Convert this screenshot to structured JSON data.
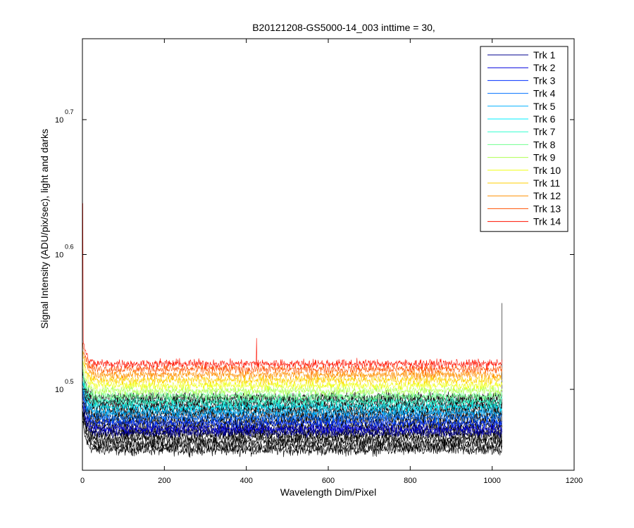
{
  "chart_data": {
    "type": "line",
    "title": "B20121208-GS5000-14_003 inttime = 30,",
    "xlabel": "Wavelength Dim/Pixel",
    "ylabel": "Signal Intensity (ADU/pix/sec), light and darks",
    "xlim": [
      0,
      1200
    ],
    "ylim_log10": [
      0.44,
      0.76
    ],
    "yscale": "log",
    "x_ticks": [
      0,
      200,
      400,
      600,
      800,
      1000,
      1200
    ],
    "y_ticks": [
      {
        "base": "10",
        "exp": "0.5",
        "value_log10": 0.5
      },
      {
        "base": "10",
        "exp": "0.6",
        "value_log10": 0.6
      },
      {
        "base": "10",
        "exp": "0.7",
        "value_log10": 0.7
      }
    ],
    "grid": false,
    "legend_position": "top-right",
    "x_range": [
      1,
      1024
    ],
    "series": [
      {
        "name": "Trk 1",
        "color": "#00008f",
        "light_log10": 0.468,
        "dark_log10": 0.455
      },
      {
        "name": "Trk 2",
        "color": "#0000df",
        "light_log10": 0.471,
        "dark_log10": 0.458
      },
      {
        "name": "Trk 3",
        "color": "#0030ff",
        "light_log10": 0.475,
        "dark_log10": 0.461
      },
      {
        "name": "Trk 4",
        "color": "#0070ff",
        "light_log10": 0.479,
        "dark_log10": 0.464
      },
      {
        "name": "Trk 5",
        "color": "#00b0ff",
        "light_log10": 0.483,
        "dark_log10": 0.467
      },
      {
        "name": "Trk 6",
        "color": "#00efff",
        "light_log10": 0.487,
        "dark_log10": 0.47
      },
      {
        "name": "Trk 7",
        "color": "#30ffcf",
        "light_log10": 0.491,
        "dark_log10": 0.473
      },
      {
        "name": "Trk 8",
        "color": "#70ff8f",
        "light_log10": 0.495,
        "dark_log10": 0.476
      },
      {
        "name": "Trk 9",
        "color": "#afff50",
        "light_log10": 0.499,
        "dark_log10": 0.479
      },
      {
        "name": "Trk 10",
        "color": "#efff10",
        "light_log10": 0.503,
        "dark_log10": 0.482
      },
      {
        "name": "Trk 11",
        "color": "#ffcf00",
        "light_log10": 0.507,
        "dark_log10": 0.485
      },
      {
        "name": "Trk 12",
        "color": "#ff8f00",
        "light_log10": 0.511,
        "dark_log10": 0.488
      },
      {
        "name": "Trk 13",
        "color": "#ff5000",
        "light_log10": 0.515,
        "dark_log10": 0.491
      },
      {
        "name": "Trk 14",
        "color": "#ff1000",
        "light_log10": 0.519,
        "dark_log10": 0.494
      }
    ],
    "dark_color": "#000000",
    "notable_spikes": [
      {
        "x": 1,
        "log10": 0.638,
        "series": "Trk 14"
      },
      {
        "x": 425,
        "log10": 0.538,
        "series": "Trk 14"
      },
      {
        "x": 1024,
        "log10": 0.564,
        "series": "dark"
      }
    ]
  }
}
